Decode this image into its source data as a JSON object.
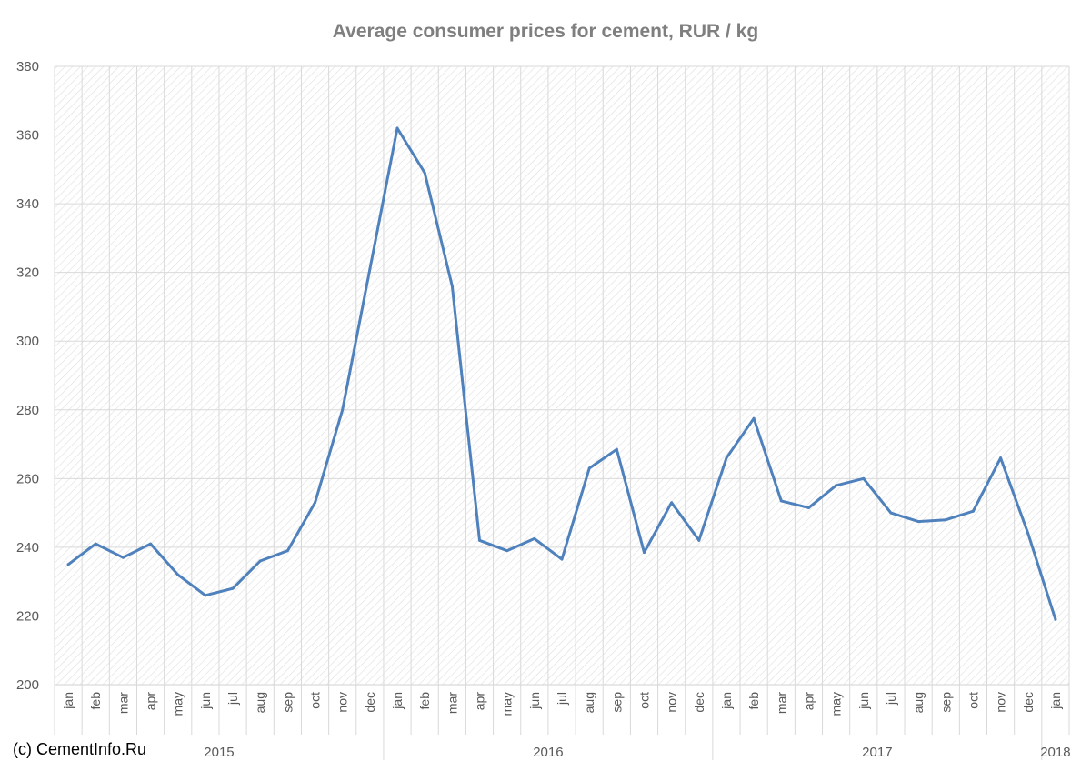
{
  "chart_data": {
    "type": "line",
    "title": "Average consumer prices for cement, RUR / kg",
    "xlabel": "",
    "ylabel": "",
    "ylim": [
      200,
      380
    ],
    "yticks": [
      200,
      220,
      240,
      260,
      280,
      300,
      320,
      340,
      360,
      380
    ],
    "grid": true,
    "legend": "none",
    "categories": [
      "jan",
      "feb",
      "mar",
      "apr",
      "may",
      "jun",
      "jul",
      "aug",
      "sep",
      "oct",
      "nov",
      "dec",
      "jan",
      "feb",
      "mar",
      "apr",
      "may",
      "jun",
      "jul",
      "aug",
      "sep",
      "oct",
      "nov",
      "dec",
      "jan",
      "feb",
      "mar",
      "apr",
      "may",
      "jun",
      "jul",
      "aug",
      "sep",
      "oct",
      "nov",
      "dec",
      "jan"
    ],
    "year_groups": [
      {
        "label": "2015",
        "count": 12
      },
      {
        "label": "2016",
        "count": 12
      },
      {
        "label": "2017",
        "count": 12
      },
      {
        "label": "2018",
        "count": 1
      }
    ],
    "series": [
      {
        "color": "#4f81bd",
        "values": [
          235,
          241,
          237,
          241,
          232,
          226,
          228,
          236,
          239,
          253,
          280,
          321,
          362,
          349,
          316,
          242,
          239,
          242.5,
          236.5,
          263,
          268.5,
          238.5,
          253,
          242,
          266,
          277.5,
          253.5,
          251.5,
          258,
          260,
          250,
          247.5,
          248,
          250.5,
          266,
          244,
          219
        ]
      }
    ]
  },
  "footer": {
    "credit": "(c) CementInfo.Ru"
  },
  "colors": {
    "line": "#4f81bd",
    "grid": "#d9d9d9",
    "text": "#595959",
    "title": "#7f7f7f"
  }
}
